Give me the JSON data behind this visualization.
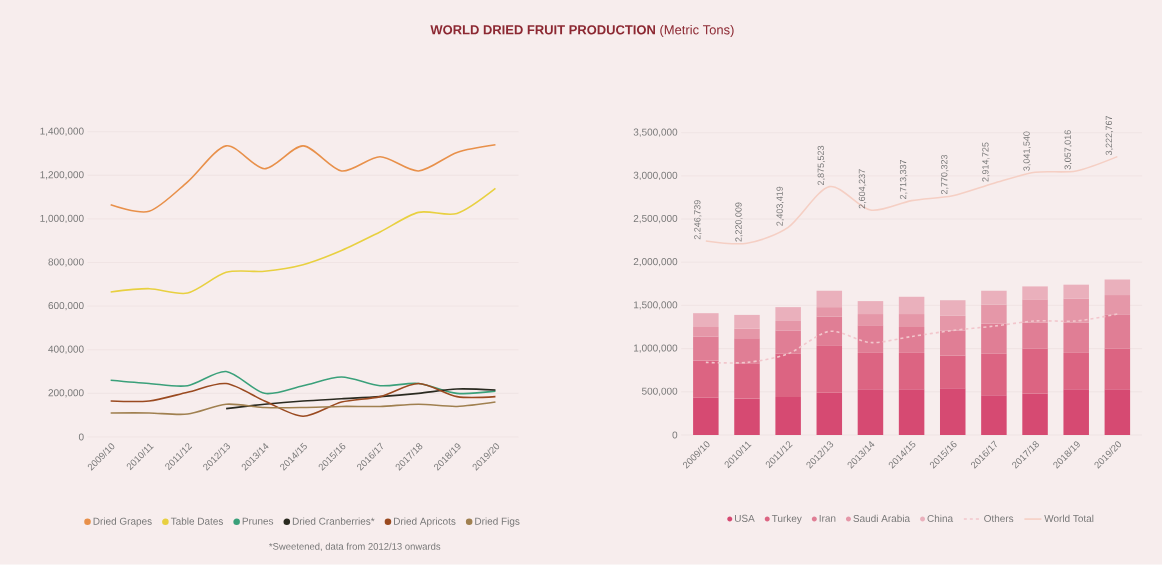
{
  "chart_data": [
    {
      "type": "line",
      "title": "**WORLD DRIED FRUIT PRODUCTION** (Metric Tons)",
      "categories": [
        "2009/10",
        "2010/11",
        "2011/12",
        "2012/13",
        "2013/14",
        "2014/15",
        "2015/16",
        "2016/17",
        "2017/18",
        "2018/19",
        "2019/20"
      ],
      "series": [
        {
          "name": "Dried Grapes",
          "color": "#e8904a",
          "values": [
            1065000,
            1035000,
            1170000,
            1335000,
            1230000,
            1335000,
            1220000,
            1285000,
            1220000,
            1305000,
            1340000
          ]
        },
        {
          "name": "Table Dates",
          "color": "#e8d040",
          "values": [
            665000,
            680000,
            660000,
            755000,
            760000,
            790000,
            855000,
            940000,
            1030000,
            1025000,
            1140000
          ]
        },
        {
          "name": "Prunes",
          "color": "#3aa07a",
          "values": [
            260000,
            245000,
            235000,
            300000,
            200000,
            235000,
            275000,
            235000,
            245000,
            200000,
            210000
          ]
        },
        {
          "name": "Dried Cranberries*",
          "color": "#2a2a20",
          "values": [
            null,
            null,
            null,
            130000,
            150000,
            165000,
            175000,
            185000,
            200000,
            220000,
            215000
          ]
        },
        {
          "name": "Dried Apricots",
          "color": "#9a4a20",
          "values": [
            165000,
            165000,
            205000,
            245000,
            165000,
            95000,
            160000,
            185000,
            245000,
            185000,
            185000
          ]
        },
        {
          "name": "Dried Figs",
          "color": "#a08050",
          "values": [
            110000,
            110000,
            105000,
            150000,
            135000,
            135000,
            140000,
            140000,
            150000,
            140000,
            160000
          ]
        }
      ],
      "ylim": [
        0,
        1400000
      ],
      "yticks": [
        0,
        {
          "value": 200000,
          "label": "200,000"
        },
        {
          "value": 400000,
          "label": "400,000"
        },
        {
          "value": 600000,
          "label": "600,000"
        },
        {
          "value": 800000,
          "label": "800,000"
        },
        {
          "value": 1000000,
          "label": "1,000,000"
        },
        {
          "value": 1200000,
          "label": "1,200,000"
        },
        {
          "value": 1400000,
          "label": "1,400,000"
        }
      ],
      "grid": "y",
      "legend": "bottom",
      "annotations": [
        "*Sweetened, data from 2012/13 onwards"
      ]
    },
    {
      "type": "bar",
      "stacked": true,
      "categories": [
        "2009/10",
        "2010/11",
        "2011/12",
        "2012/13",
        "2013/14",
        "2014/15",
        "2015/16",
        "2016/17",
        "2017/18",
        "2018/19",
        "2019/20"
      ],
      "series": [
        {
          "name": "USA",
          "color": "#d64a72",
          "values": [
            430000,
            420000,
            440000,
            490000,
            530000,
            530000,
            540000,
            460000,
            480000,
            530000,
            530000
          ]
        },
        {
          "name": "Turkey",
          "color": "#dc6482",
          "values": [
            430000,
            410000,
            500000,
            550000,
            420000,
            420000,
            380000,
            480000,
            520000,
            420000,
            470000
          ]
        },
        {
          "name": "Iran",
          "color": "#e07e95",
          "values": [
            280000,
            290000,
            270000,
            330000,
            320000,
            300000,
            290000,
            350000,
            300000,
            350000,
            390000
          ]
        },
        {
          "name": "Saudi Arabia",
          "color": "#e597a8",
          "values": [
            110000,
            110000,
            110000,
            110000,
            130000,
            150000,
            170000,
            220000,
            270000,
            280000,
            230000
          ]
        },
        {
          "name": "China",
          "color": "#eab0bc",
          "values": [
            160000,
            160000,
            160000,
            190000,
            150000,
            200000,
            180000,
            160000,
            150000,
            160000,
            180000
          ]
        },
        {
          "name": "Others",
          "type": "line",
          "line_style": "dashed",
          "color": "#f2c6cc",
          "values": [
            840000,
            840000,
            940000,
            1200000,
            1070000,
            1140000,
            1210000,
            1260000,
            1320000,
            1320000,
            1400000
          ]
        },
        {
          "name": "World Total",
          "type": "line",
          "line_style": "solid",
          "color": "#f5cfc4",
          "values": [
            2246739,
            2220009,
            2403419,
            2875523,
            2604237,
            2713337,
            2770323,
            2914725,
            3041540,
            3057016,
            3222767
          ],
          "value_labels": [
            "2,246,739",
            "2,220,009",
            "2,403,419",
            "2,875,523",
            "2,604,237",
            "2,713,337",
            "2,770,323",
            "2,914,725",
            "3,041,540",
            "3,057,016",
            "3,222,767"
          ]
        }
      ],
      "ylim": [
        0,
        3500000
      ],
      "yticks": [
        0,
        {
          "value": 500000,
          "label": "500,000"
        },
        {
          "value": 1000000,
          "label": "1,000,000"
        },
        {
          "value": 1500000,
          "label": "1,500,000"
        },
        {
          "value": 2000000,
          "label": "2,000,000"
        },
        {
          "value": 2500000,
          "label": "2,500,000"
        },
        {
          "value": 3000000,
          "label": "3,000,000"
        },
        {
          "value": 3500000,
          "label": "3,500,000"
        }
      ],
      "grid": "y",
      "legend": "bottom"
    }
  ]
}
